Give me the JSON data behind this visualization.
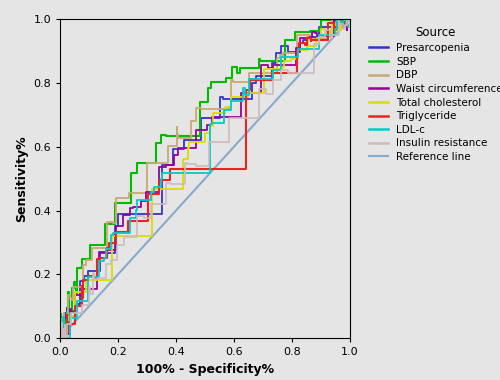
{
  "xlabel": "100% - Specificity%",
  "ylabel": "Sensitivity%",
  "legend_title": "Source",
  "curves": [
    {
      "label": "Presarcopenia",
      "color": "#3333cc",
      "auc": 0.641,
      "seed": 42,
      "lw": 1.3
    },
    {
      "label": "SBP",
      "color": "#00bb00",
      "auc": 0.692,
      "seed": 7,
      "lw": 1.5
    },
    {
      "label": "DBP",
      "color": "#c8aa70",
      "auc": 0.667,
      "seed": 13,
      "lw": 1.3
    },
    {
      "label": "Waist circumference",
      "color": "#990099",
      "auc": 0.627,
      "seed": 21,
      "lw": 1.3
    },
    {
      "label": "Total cholesterol",
      "color": "#dddd00",
      "auc": 0.61,
      "seed": 33,
      "lw": 1.3
    },
    {
      "label": "Triglyceride",
      "color": "#ee2222",
      "auc": 0.61,
      "seed": 55,
      "lw": 1.5
    },
    {
      "label": "LDL-c",
      "color": "#00cccc",
      "auc": 0.614,
      "seed": 77,
      "lw": 1.3
    },
    {
      "label": "Insulin resistance",
      "color": "#ccbbbb",
      "auc": 0.569,
      "seed": 99,
      "lw": 1.2
    }
  ],
  "reference_line_color": "#88aacc",
  "reference_line_lw": 1.5,
  "background_color": "#e5e5e5",
  "plot_bg_color": "#e5e5e5",
  "xlim": [
    0.0,
    1.0
  ],
  "ylim": [
    0.0,
    1.0
  ],
  "xticks": [
    0.0,
    0.2,
    0.4,
    0.6,
    0.8,
    1.0
  ],
  "yticks": [
    0.0,
    0.2,
    0.4,
    0.6,
    0.8,
    1.0
  ],
  "figsize": [
    5.0,
    3.8
  ],
  "dpi": 100
}
